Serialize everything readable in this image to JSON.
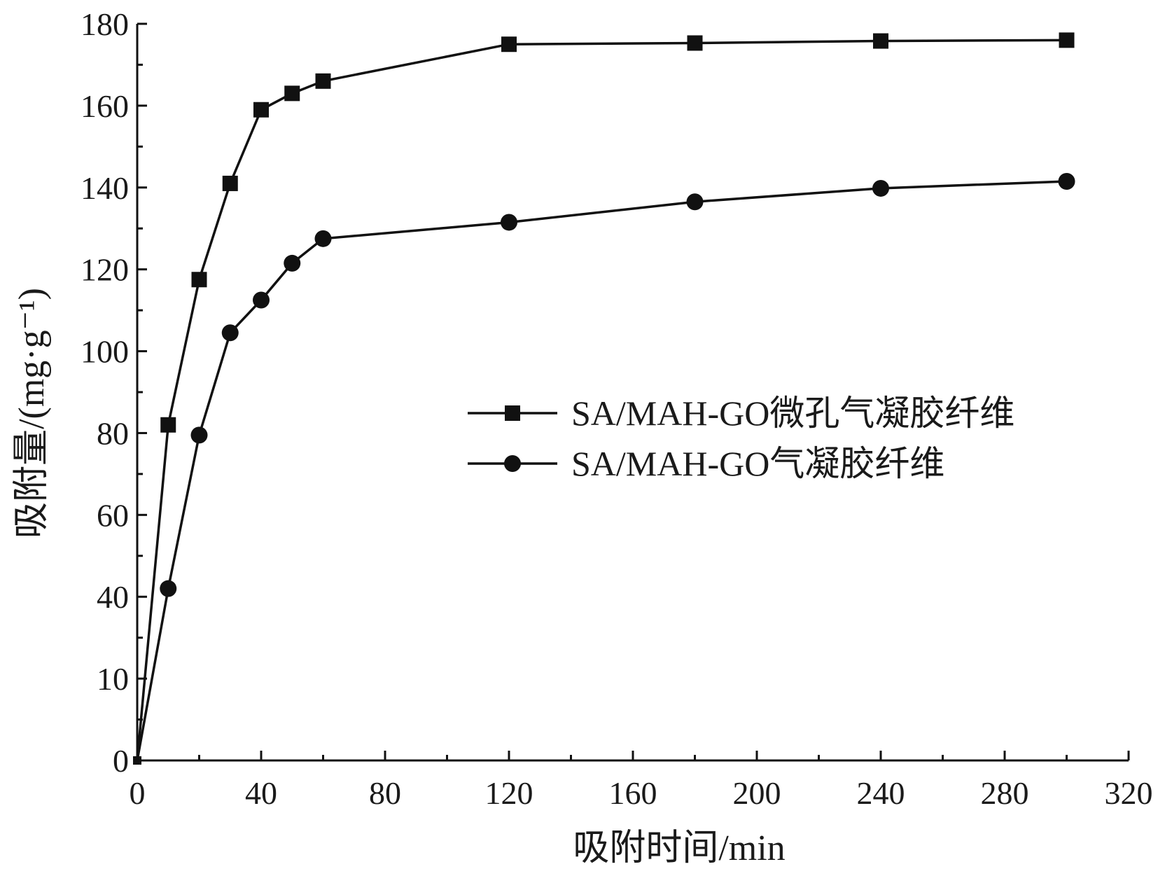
{
  "chart_data": {
    "type": "line",
    "xlabel": "吸附时间/min",
    "ylabel": "吸附量/(mg·g⁻¹)",
    "xlim": [
      0,
      320
    ],
    "ylim": [
      0,
      180
    ],
    "xticks": [
      0,
      40,
      80,
      120,
      160,
      200,
      240,
      280,
      320
    ],
    "yticks": [
      0,
      10,
      40,
      60,
      80,
      100,
      120,
      140,
      160,
      180
    ],
    "grid": false,
    "legend_position": "right-center",
    "series": [
      {
        "name": "SA/MAH-GO微孔气凝胶纤维",
        "marker": "square",
        "color": "#111111",
        "x": [
          0,
          10,
          20,
          30,
          40,
          50,
          60,
          120,
          180,
          240,
          300
        ],
        "y": [
          0,
          82,
          117.5,
          141,
          159,
          163,
          166,
          175,
          175.3,
          175.8,
          176
        ]
      },
      {
        "name": "SA/MAH-GO气凝胶纤维",
        "marker": "circle",
        "color": "#111111",
        "x": [
          0,
          10,
          20,
          30,
          40,
          50,
          60,
          120,
          180,
          240,
          300
        ],
        "y": [
          0,
          42,
          79.5,
          104.5,
          112.5,
          121.5,
          127.5,
          131.5,
          136.5,
          139.8,
          141.5
        ]
      }
    ]
  }
}
